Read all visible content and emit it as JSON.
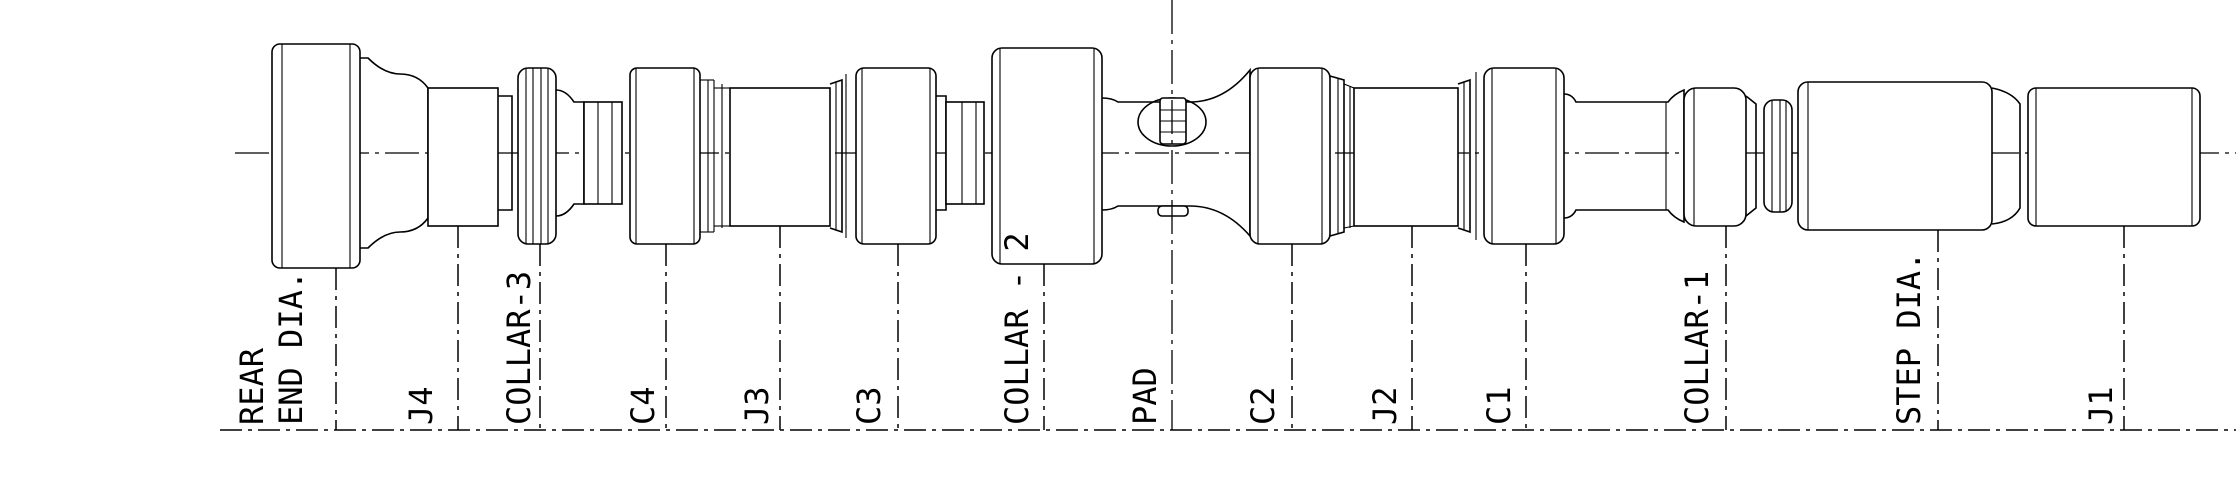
{
  "drawing": {
    "labels": [
      "REAR",
      "END DIA.",
      "J4",
      "COLLAR-3",
      "C4",
      "J3",
      "C3",
      "COLLAR - 2",
      "PAD",
      "C2",
      "J2",
      "C1",
      "COLLAR-1",
      "STEP DIA.",
      "J1"
    ]
  }
}
